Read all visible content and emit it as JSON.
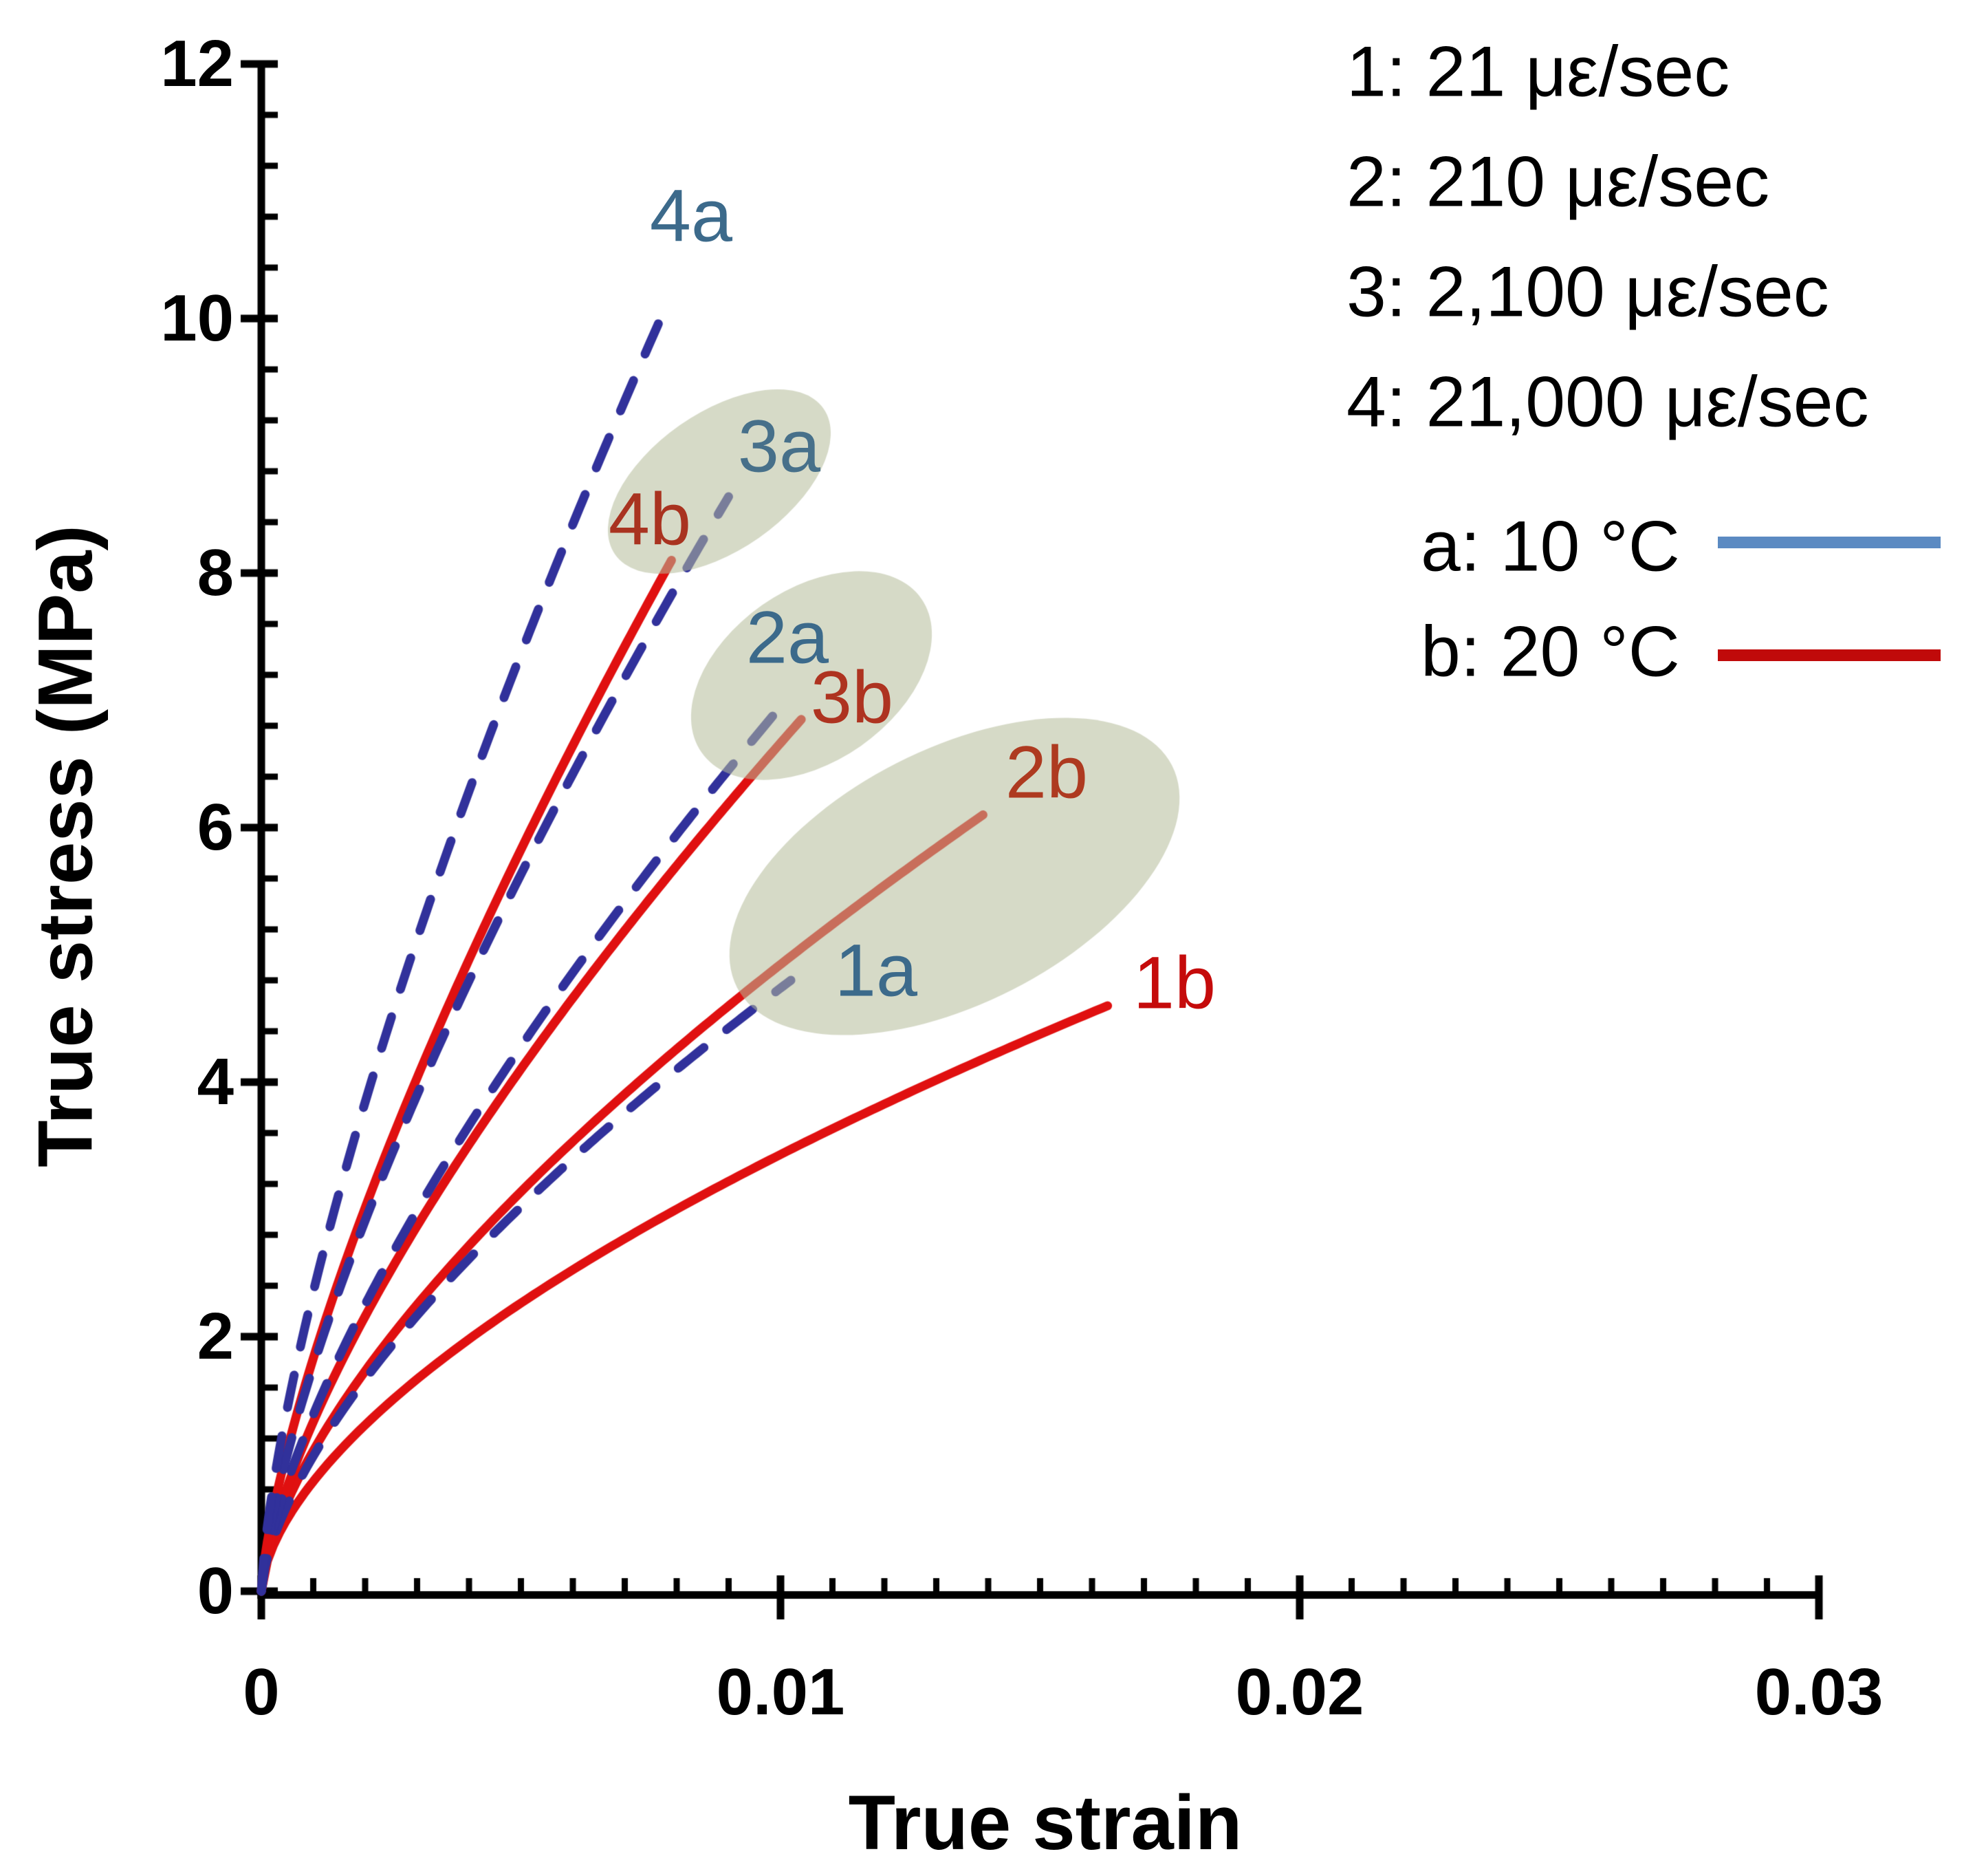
{
  "chart_data": {
    "type": "line",
    "title": "",
    "xlabel": "True strain",
    "ylabel": "True stress (MPa)",
    "xlim": [
      0,
      0.03
    ],
    "ylim": [
      0,
      12
    ],
    "grid": false,
    "legend_position": "top-right",
    "x_ticks": {
      "major": 0.01,
      "minor": 0.001,
      "values": [
        0,
        0.01,
        0.02,
        0.03
      ],
      "labels": [
        "0",
        "0.01",
        "0.02",
        "0.03"
      ]
    },
    "y_ticks": {
      "major": 2,
      "minor": 0.4,
      "values": [
        0,
        2,
        4,
        6,
        8,
        10,
        12
      ],
      "labels": [
        "0",
        "2",
        "4",
        "6",
        "8",
        "10",
        "12"
      ]
    },
    "series": [
      {
        "id": "1a",
        "label": "1a",
        "temperature": "10 °C",
        "strain_rate": "21 με/sec",
        "style": "dashed",
        "color": "#31319B",
        "label_color": "#3C6A8B",
        "shape_exponent": 0.65,
        "end": {
          "strain": 0.0102,
          "stress": 4.8
        },
        "points": {
          "strain": [
            0,
            0.00128,
            0.00255,
            0.00383,
            0.0051,
            0.00638,
            0.00765,
            0.00893,
            0.0102
          ],
          "stress": [
            0,
            1.24,
            1.95,
            2.54,
            3.06,
            3.54,
            3.98,
            4.4,
            4.8
          ]
        }
      },
      {
        "id": "1b",
        "label": "1b",
        "temperature": "20 °C",
        "strain_rate": "21 με/sec",
        "style": "solid",
        "color": "#E01010",
        "label_color": "#C50B0B",
        "shape_exponent": 0.6,
        "end": {
          "strain": 0.0163,
          "stress": 4.6
        },
        "points": {
          "strain": [
            0,
            0.00204,
            0.00408,
            0.00611,
            0.00815,
            0.01019,
            0.01223,
            0.01426,
            0.0163
          ],
          "stress": [
            0,
            1.32,
            2.0,
            2.55,
            3.04,
            3.47,
            3.87,
            4.25,
            4.6
          ]
        }
      },
      {
        "id": "2a",
        "label": "2a",
        "temperature": "10 °C",
        "strain_rate": "210 με/sec",
        "style": "dashed",
        "color": "#31319B",
        "label_color": "#3C6A8B",
        "shape_exponent": 0.7,
        "end": {
          "strain": 0.01,
          "stress": 6.95
        },
        "points": {
          "strain": [
            0,
            0.00125,
            0.0025,
            0.00375,
            0.005,
            0.00625,
            0.0075,
            0.00875,
            0.01
          ],
          "stress": [
            0,
            1.62,
            2.63,
            3.5,
            4.28,
            5.0,
            5.68,
            6.33,
            6.95
          ]
        }
      },
      {
        "id": "2b",
        "label": "2b",
        "temperature": "20 °C",
        "strain_rate": "210 με/sec",
        "style": "solid",
        "color": "#E01010",
        "label_color": "#AE3A20",
        "shape_exponent": 0.65,
        "end": {
          "strain": 0.0139,
          "stress": 6.1
        },
        "points": {
          "strain": [
            0,
            0.00174,
            0.00348,
            0.00521,
            0.00695,
            0.00869,
            0.01043,
            0.01216,
            0.0139
          ],
          "stress": [
            0,
            1.58,
            2.48,
            3.22,
            3.89,
            4.49,
            5.06,
            5.59,
            6.1
          ]
        }
      },
      {
        "id": "3a",
        "label": "3a",
        "temperature": "10 °C",
        "strain_rate": "2,100 με/sec",
        "style": "dashed",
        "color": "#31319B",
        "label_color": "#47708A",
        "shape_exponent": 0.72,
        "end": {
          "strain": 0.009,
          "stress": 8.6
        },
        "points": {
          "strain": [
            0,
            0.00113,
            0.00225,
            0.00338,
            0.0045,
            0.00563,
            0.00675,
            0.00788,
            0.009
          ],
          "stress": [
            0,
            1.92,
            3.17,
            4.24,
            5.22,
            6.13,
            6.99,
            7.81,
            8.6
          ]
        }
      },
      {
        "id": "3b",
        "label": "3b",
        "temperature": "20 °C",
        "strain_rate": "2,100 με/sec",
        "style": "solid",
        "color": "#E01010",
        "label_color": "#AE3320",
        "shape_exponent": 0.7,
        "end": {
          "strain": 0.0104,
          "stress": 6.85
        },
        "points": {
          "strain": [
            0,
            0.0013,
            0.0026,
            0.0039,
            0.0052,
            0.0065,
            0.0078,
            0.0091,
            0.0104
          ],
          "stress": [
            0,
            1.6,
            2.6,
            3.45,
            4.22,
            4.93,
            5.6,
            6.24,
            6.85
          ]
        }
      },
      {
        "id": "4a",
        "label": "4a",
        "temperature": "10 °C",
        "strain_rate": "21,000 με/sec",
        "style": "dashed",
        "color": "#31319B",
        "label_color": "#3C6A8B",
        "shape_exponent": 0.71,
        "end": {
          "strain": 0.0078,
          "stress": 10.1
        },
        "points": {
          "strain": [
            0,
            0.00098,
            0.00195,
            0.00293,
            0.0039,
            0.00488,
            0.00585,
            0.00683,
            0.0078
          ],
          "stress": [
            0,
            2.31,
            3.77,
            5.03,
            6.17,
            7.23,
            8.23,
            9.19,
            10.1
          ]
        }
      },
      {
        "id": "4b",
        "label": "4b",
        "temperature": "20 °C",
        "strain_rate": "21,000 με/sec",
        "style": "solid",
        "color": "#E01010",
        "label_color": "#A93320",
        "shape_exponent": 0.72,
        "end": {
          "strain": 0.0079,
          "stress": 8.1
        },
        "points": {
          "strain": [
            0,
            0.00099,
            0.00198,
            0.00296,
            0.00395,
            0.00494,
            0.00593,
            0.00691,
            0.0079
          ],
          "stress": [
            0,
            1.81,
            2.99,
            4.0,
            4.92,
            5.77,
            6.58,
            7.36,
            8.1
          ]
        }
      }
    ],
    "highlight_groups": [
      {
        "members": [
          "3a",
          "4b"
        ]
      },
      {
        "members": [
          "2a",
          "3b"
        ]
      },
      {
        "members": [
          "2b",
          "1a"
        ]
      }
    ]
  },
  "legend": {
    "rates": [
      "1: 21 με/sec",
      "2: 210 με/sec",
      "3: 2,100 με/sec",
      "4: 21,000 με/sec"
    ],
    "temps": [
      {
        "label": "a: 10 °C",
        "color": "#5B8AC2"
      },
      {
        "label": "b: 20 °C",
        "color": "#C00A0A"
      }
    ]
  },
  "colors": {
    "dashed_a_curve": "#31319B",
    "solid_b_curve": "#E01010",
    "highlight_fill": "rgba(180,188,153,0.55)",
    "axis": "#000000"
  }
}
